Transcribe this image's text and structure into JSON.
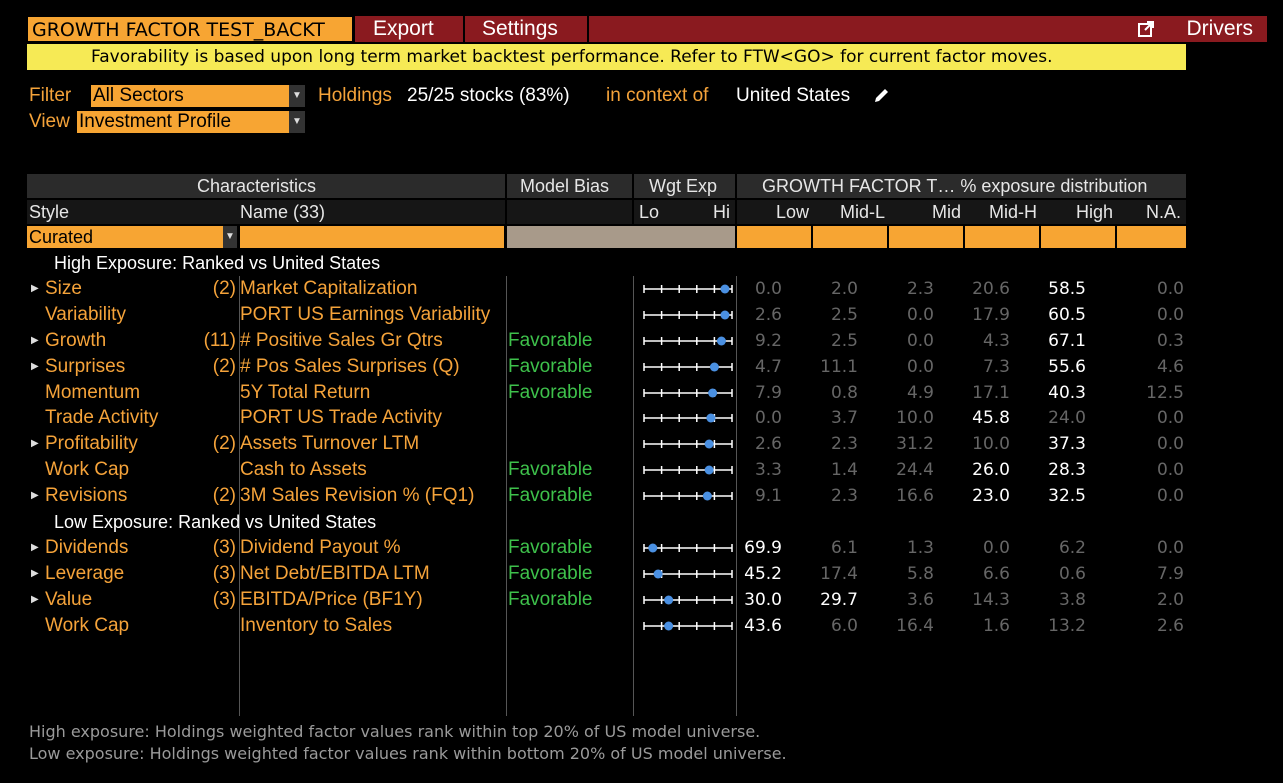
{
  "toolbar": {
    "title": "GROWTH FACTOR TEST_BACKT",
    "export_label": "Export",
    "settings_label": "Settings",
    "drivers_label": "Drivers"
  },
  "banner": "Favorability is based upon long term market backtest performance. Refer to FTW<GO> for current factor moves.",
  "filter": {
    "filter_label": "Filter",
    "filter_value": "All Sectors",
    "view_label": "View",
    "view_value": "Investment Profile",
    "holdings_label": "Holdings",
    "holdings_count": "25/25 stocks (83%)",
    "context_label": "in context of",
    "context_value": "United States"
  },
  "table": {
    "header_groups": {
      "characteristics": "Characteristics",
      "model_bias": "Model Bias",
      "wgt_exp": "Wgt Exp",
      "distribution": "GROWTH FACTOR T… % exposure distribution"
    },
    "columns": {
      "style": "Style",
      "name": "Name (33)",
      "lo": "Lo",
      "hi": "Hi",
      "low": "Low",
      "mid_l": "Mid-L",
      "mid": "Mid",
      "mid_h": "Mid-H",
      "high": "High",
      "na": "N.A."
    },
    "style_filter": "Curated",
    "sections": [
      {
        "title": "High Exposure: Ranked vs United States",
        "rows": [
          {
            "style": "Size",
            "expandable": true,
            "count": "(2)",
            "name": "Market Capitalization",
            "bias": "",
            "exp": 0.92,
            "values": [
              "0.0",
              "2.0",
              "2.3",
              "20.6",
              "58.5",
              "0.0"
            ],
            "highlight": [
              4
            ]
          },
          {
            "style": "Variability",
            "expandable": false,
            "count": "",
            "name": "PORT US Earnings Variability",
            "bias": "",
            "exp": 0.92,
            "values": [
              "2.6",
              "2.5",
              "0.0",
              "17.9",
              "60.5",
              "0.0"
            ],
            "highlight": [
              4
            ]
          },
          {
            "style": "Growth",
            "expandable": true,
            "count": "(11)",
            "name": "# Positive Sales Gr Qtrs",
            "bias": "Favorable",
            "exp": 0.88,
            "values": [
              "9.2",
              "2.5",
              "0.0",
              "4.3",
              "67.1",
              "0.3"
            ],
            "highlight": [
              4
            ]
          },
          {
            "style": "Surprises",
            "expandable": true,
            "count": "(2)",
            "name": "# Pos Sales Surprises (Q)",
            "bias": "Favorable",
            "exp": 0.8,
            "values": [
              "4.7",
              "11.1",
              "0.0",
              "7.3",
              "55.6",
              "4.6"
            ],
            "highlight": [
              4
            ]
          },
          {
            "style": "Momentum",
            "expandable": false,
            "count": "",
            "name": "5Y Total Return",
            "bias": "Favorable",
            "exp": 0.78,
            "values": [
              "7.9",
              "0.8",
              "4.9",
              "17.1",
              "40.3",
              "12.5"
            ],
            "highlight": [
              4
            ]
          },
          {
            "style": "Trade Activity",
            "expandable": false,
            "count": "",
            "name": "PORT US Trade Activity",
            "bias": "",
            "exp": 0.76,
            "values": [
              "0.0",
              "3.7",
              "10.0",
              "45.8",
              "24.0",
              "0.0"
            ],
            "highlight": [
              3
            ]
          },
          {
            "style": "Profitability",
            "expandable": true,
            "count": "(2)",
            "name": "Assets Turnover LTM",
            "bias": "",
            "exp": 0.74,
            "values": [
              "2.6",
              "2.3",
              "31.2",
              "10.0",
              "37.3",
              "0.0"
            ],
            "highlight": [
              4
            ]
          },
          {
            "style": "Work Cap",
            "expandable": false,
            "count": "",
            "name": "Cash to Assets",
            "bias": "Favorable",
            "exp": 0.74,
            "values": [
              "3.3",
              "1.4",
              "24.4",
              "26.0",
              "28.3",
              "0.0"
            ],
            "highlight": [
              3,
              4
            ]
          },
          {
            "style": "Revisions",
            "expandable": true,
            "count": "(2)",
            "name": "3M Sales Revision % (FQ1)",
            "bias": "Favorable",
            "exp": 0.72,
            "values": [
              "9.1",
              "2.3",
              "16.6",
              "23.0",
              "32.5",
              "0.0"
            ],
            "highlight": [
              3,
              4
            ]
          }
        ]
      },
      {
        "title": "Low Exposure: Ranked vs United States",
        "rows": [
          {
            "style": "Dividends",
            "expandable": true,
            "count": "(3)",
            "name": "Dividend Payout %",
            "bias": "Favorable",
            "exp": 0.1,
            "values": [
              "69.9",
              "6.1",
              "1.3",
              "0.0",
              "6.2",
              "0.0"
            ],
            "highlight": [
              0
            ]
          },
          {
            "style": "Leverage",
            "expandable": true,
            "count": "(3)",
            "name": "Net Debt/EBITDA LTM",
            "bias": "Favorable",
            "exp": 0.16,
            "values": [
              "45.2",
              "17.4",
              "5.8",
              "6.6",
              "0.6",
              "7.9"
            ],
            "highlight": [
              0
            ]
          },
          {
            "style": "Value",
            "expandable": true,
            "count": "(3)",
            "name": "EBITDA/Price (BF1Y)",
            "bias": "Favorable",
            "exp": 0.28,
            "values": [
              "30.0",
              "29.7",
              "3.6",
              "14.3",
              "3.8",
              "2.0"
            ],
            "highlight": [
              0,
              1
            ]
          },
          {
            "style": "Work Cap",
            "expandable": false,
            "count": "",
            "name": "Inventory to Sales",
            "bias": "",
            "exp": 0.28,
            "values": [
              "43.6",
              "6.0",
              "16.4",
              "1.6",
              "13.2",
              "2.6"
            ],
            "highlight": [
              0
            ]
          }
        ]
      }
    ]
  },
  "footer": {
    "line1": "High exposure: Holdings weighted factor values rank within top 20% of US model universe.",
    "line2": "Low exposure: Holdings weighted factor values rank within bottom 20% of US model universe."
  },
  "colors": {
    "accent_orange": "#f7a533",
    "menu_red": "#8a1a1f",
    "banner_yellow": "#f6ea55",
    "favorable_green": "#3ec14b",
    "dot_blue": "#4a90e2"
  }
}
